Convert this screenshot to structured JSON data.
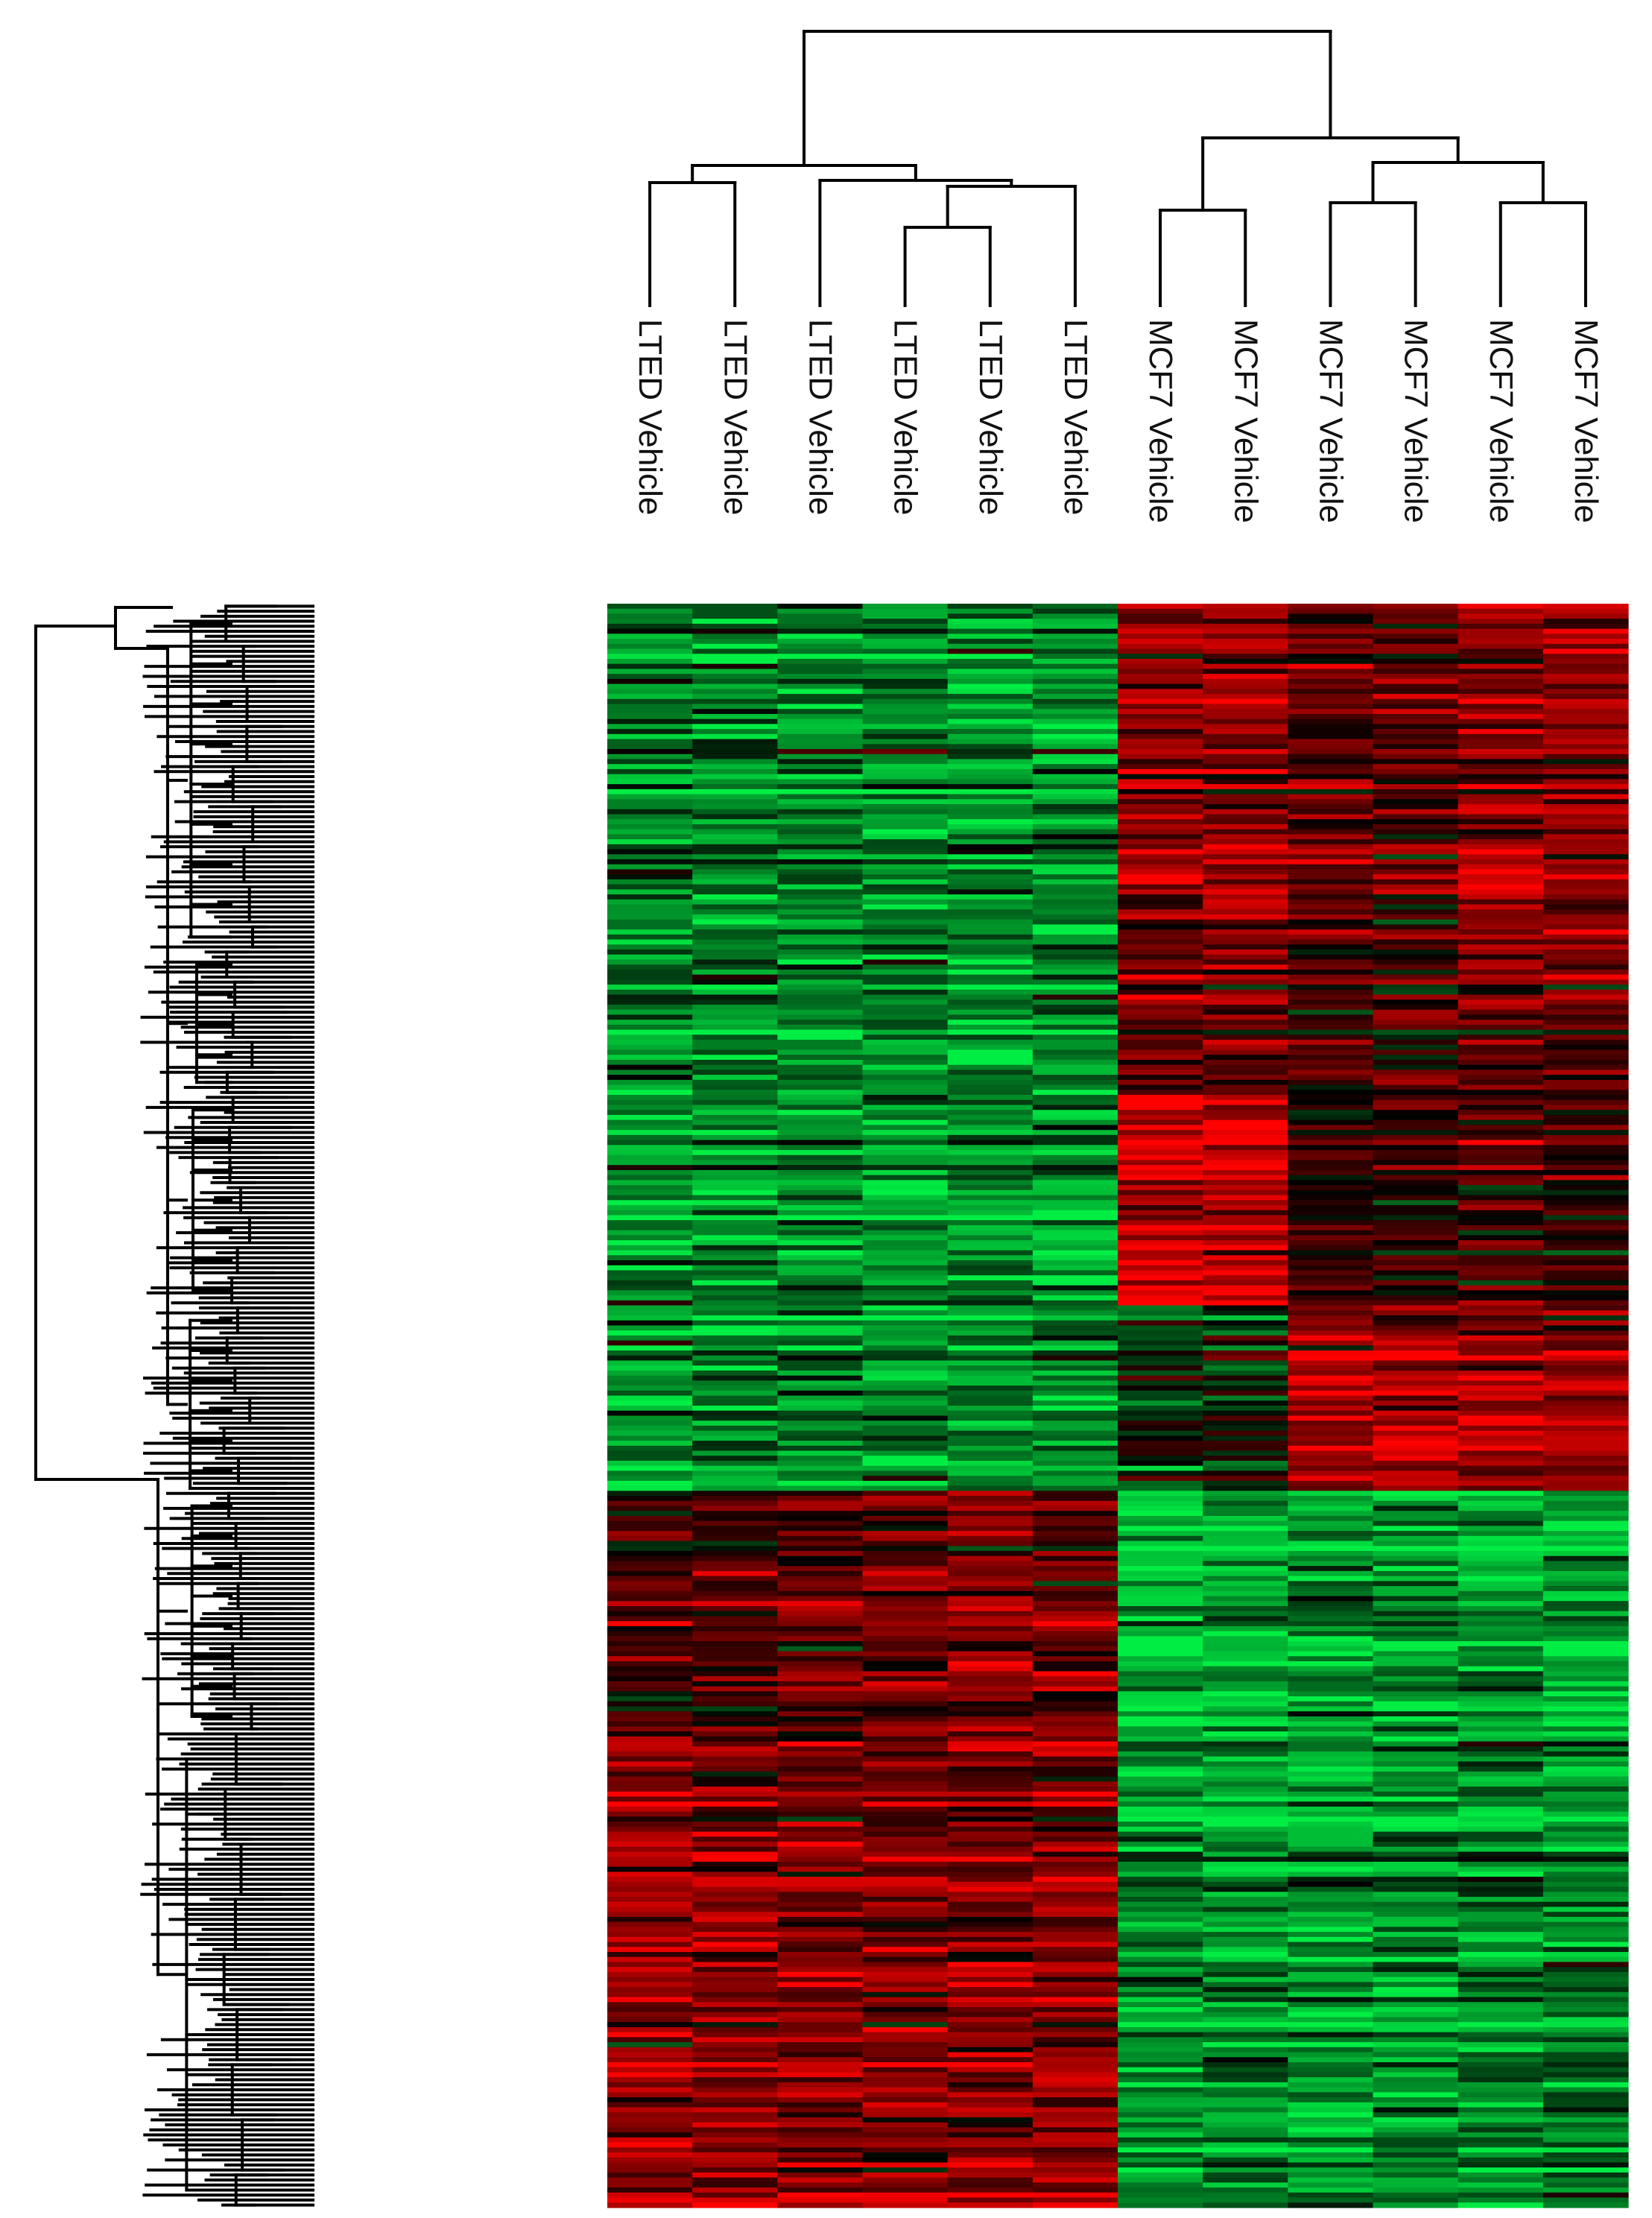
{
  "chart_data": {
    "type": "heatmap",
    "title": "",
    "xlabel": "",
    "ylabel": "",
    "columns": [
      "LTED Vehicle",
      "LTED Vehicle",
      "LTED Vehicle",
      "LTED Vehicle",
      "LTED Vehicle",
      "LTED Vehicle",
      "MCF7 Vehicle",
      "MCF7 Vehicle",
      "MCF7 Vehicle",
      "MCF7 Vehicle",
      "MCF7 Vehicle",
      "MCF7 Vehicle"
    ],
    "colormap": {
      "low": "#00ee44",
      "mid": "#000000",
      "high": "#ff0000"
    },
    "value_range": [
      -1,
      1
    ],
    "gene_blocks": [
      {
        "fraction": 0.215,
        "means": [
          -0.45,
          -0.5,
          -0.5,
          -0.55,
          -0.55,
          -0.55,
          0.55,
          0.55,
          0.35,
          0.35,
          0.55,
          0.55
        ]
      },
      {
        "fraction": 0.09,
        "means": [
          -0.5,
          -0.5,
          -0.55,
          -0.55,
          -0.55,
          -0.5,
          0.45,
          0.45,
          0.25,
          0.25,
          0.4,
          0.35
        ]
      },
      {
        "fraction": 0.13,
        "means": [
          -0.55,
          -0.55,
          -0.55,
          -0.6,
          -0.55,
          -0.55,
          0.8,
          0.8,
          0.2,
          0.2,
          0.25,
          0.2
        ]
      },
      {
        "fraction": 0.115,
        "means": [
          -0.6,
          -0.55,
          -0.55,
          -0.6,
          -0.6,
          -0.6,
          -0.15,
          -0.15,
          0.65,
          0.7,
          0.6,
          0.6
        ]
      },
      {
        "fraction": 0.15,
        "means": [
          0.3,
          0.3,
          0.45,
          0.45,
          0.5,
          0.35,
          -0.75,
          -0.7,
          -0.55,
          -0.55,
          -0.65,
          -0.65
        ]
      },
      {
        "fraction": 0.3,
        "means": [
          0.55,
          0.5,
          0.45,
          0.45,
          0.5,
          0.5,
          -0.6,
          -0.6,
          -0.65,
          -0.6,
          -0.55,
          -0.55
        ]
      }
    ],
    "column_dendrogram": {
      "leaf_order": [
        0,
        1,
        2,
        3,
        4,
        5,
        6,
        7,
        8,
        9,
        10,
        11
      ],
      "clusters": [
        [
          "LTED Vehicle",
          "LTED Vehicle",
          "LTED Vehicle",
          "LTED Vehicle",
          "LTED Vehicle",
          "LTED Vehicle"
        ],
        [
          "MCF7 Vehicle",
          "MCF7 Vehicle",
          "MCF7 Vehicle",
          "MCF7 Vehicle",
          "MCF7 Vehicle",
          "MCF7 Vehicle"
        ]
      ]
    },
    "row_dendrogram": {
      "main_split": [
        "upper block",
        "lower block"
      ]
    },
    "grid": false,
    "legend": "none"
  }
}
